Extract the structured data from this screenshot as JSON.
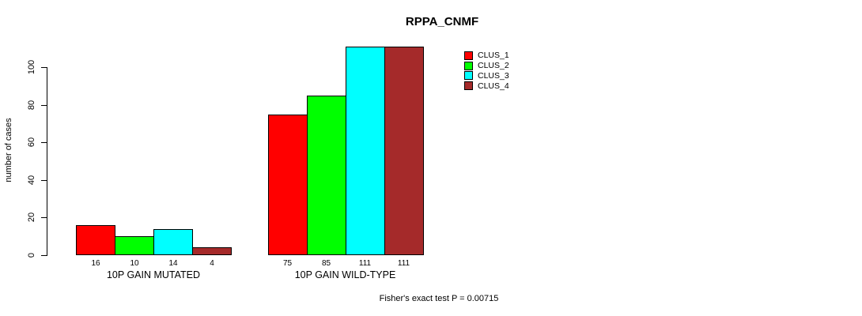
{
  "chart_data": {
    "type": "bar",
    "title": "RPPA_CNMF",
    "ylabel": "number of cases",
    "xlabel": "",
    "categories": [
      "10P GAIN MUTATED",
      "10P GAIN WILD-TYPE"
    ],
    "series": [
      {
        "name": "CLUS_1",
        "color": "#ff0000",
        "values": [
          16,
          75
        ]
      },
      {
        "name": "CLUS_2",
        "color": "#00ff00",
        "values": [
          10,
          85
        ]
      },
      {
        "name": "CLUS_3",
        "color": "#00ffff",
        "values": [
          14,
          111
        ]
      },
      {
        "name": "CLUS_4",
        "color": "#a52a2a",
        "values": [
          4,
          111
        ]
      }
    ],
    "yticks": [
      0,
      20,
      40,
      60,
      80,
      100
    ],
    "ylim": [
      0,
      111
    ],
    "bar_value_labels": [
      [
        16,
        10,
        14,
        4
      ],
      [
        75,
        85,
        111,
        111
      ]
    ],
    "grid": false,
    "legend": {
      "position": "top-right",
      "entries": [
        "CLUS_1",
        "CLUS_2",
        "CLUS_3",
        "CLUS_4"
      ]
    },
    "annotation": "Fisher's exact test P = 0.00715"
  }
}
